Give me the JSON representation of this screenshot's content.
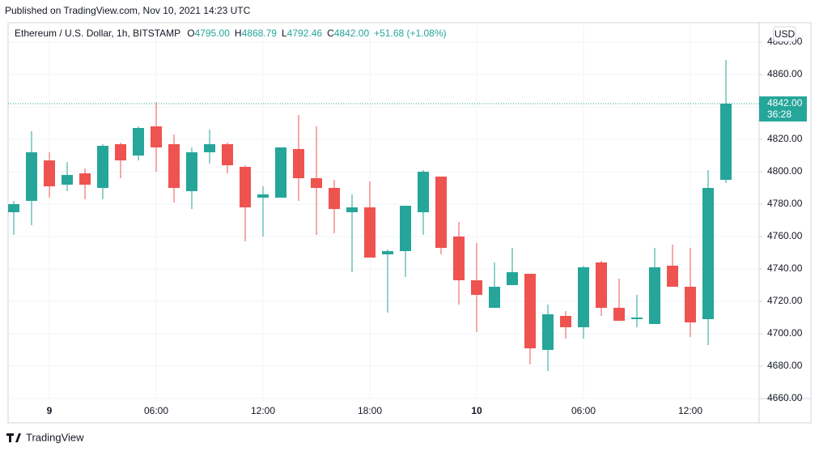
{
  "header": {
    "published": "Published on TradingView.com, Nov 10, 2021 14:23 UTC"
  },
  "footer": {
    "logo": "TradingView"
  },
  "chart_data": {
    "type": "candlestick",
    "legend": {
      "symbol": "Ethereum / U.S. Dollar, 1h, BITSTAMP",
      "o_label": "O",
      "open": "4795.00",
      "h_label": "H",
      "high": "4868.79",
      "l_label": "L",
      "low": "4792.46",
      "c_label": "C",
      "close": "4842.00",
      "change": "+51.68 (+1.08%)"
    },
    "currency": "USD",
    "categories": [
      null,
      null,
      "9",
      null,
      null,
      null,
      null,
      null,
      "06:00",
      null,
      null,
      null,
      null,
      null,
      "12:00",
      null,
      null,
      null,
      null,
      null,
      "18:00",
      null,
      null,
      null,
      null,
      null,
      "10",
      null,
      null,
      null,
      null,
      null,
      "06:00",
      null,
      null,
      null,
      null,
      null,
      "12:00",
      null,
      null
    ],
    "bold_categories": [
      "9",
      "10"
    ],
    "open": [
      4775,
      4782,
      4807,
      4792,
      4799,
      4790,
      4817,
      4810,
      4828,
      4817,
      4788,
      4812,
      4817,
      4803,
      4784,
      4784,
      4814,
      4796,
      4790,
      4775,
      4778,
      4749,
      4751,
      4775,
      4797,
      4760,
      4733,
      4716,
      4730,
      4737,
      4690,
      4711,
      4704,
      4744,
      4716,
      4709,
      4706,
      4742,
      4729,
      4709,
      4795
    ],
    "high": [
      4782,
      4825,
      4812,
      4806,
      4802,
      4817,
      4818,
      4828,
      4843,
      4823,
      4815,
      4826,
      4818,
      4804,
      4791,
      4815,
      4835,
      4828,
      4795,
      4786,
      4794,
      4752,
      4779,
      4801,
      4797,
      4769,
      4756,
      4744,
      4753,
      4737,
      4718,
      4714,
      4742,
      4745,
      4734,
      4724,
      4753,
      4755,
      4753,
      4801,
      4869
    ],
    "low": [
      4761,
      4767,
      4784,
      4788,
      4783,
      4783,
      4796,
      4807,
      4800,
      4781,
      4777,
      4805,
      4799,
      4757,
      4760,
      4784,
      4782,
      4761,
      4762,
      4738,
      4747,
      4713,
      4735,
      4761,
      4749,
      4718,
      4701,
      4716,
      4730,
      4681,
      4677,
      4697,
      4697,
      4711,
      4708,
      4704,
      4706,
      4729,
      4698,
      4693,
      4793
    ],
    "close": [
      4780,
      4812,
      4791,
      4798,
      4792,
      4816,
      4807,
      4827,
      4815,
      4790,
      4812,
      4817,
      4804,
      4778,
      4786,
      4815,
      4796,
      4790,
      4777,
      4778,
      4747,
      4751,
      4779,
      4800,
      4753,
      4733,
      4724,
      4729,
      4738,
      4691,
      4712,
      4704,
      4741,
      4716,
      4708,
      4710,
      4741,
      4729,
      4707,
      4790,
      4842
    ],
    "up_color": "#26a69a",
    "down_color": "#ef5350",
    "last_price": {
      "value": 4842,
      "label": "4842.00"
    },
    "countdown": "36:28",
    "ylim": [
      4660,
      4891
    ],
    "yticks": [
      {
        "value": 4660,
        "label": "4660.00"
      },
      {
        "value": 4680,
        "label": "4680.00"
      },
      {
        "value": 4700,
        "label": "4700.00"
      },
      {
        "value": 4720,
        "label": "4720.00"
      },
      {
        "value": 4740,
        "label": "4740.00"
      },
      {
        "value": 4760,
        "label": "4760.00"
      },
      {
        "value": 4780,
        "label": "4780.00"
      },
      {
        "value": 4800,
        "label": "4800.00"
      },
      {
        "value": 4820,
        "label": "4820.00"
      },
      {
        "value": 4840,
        "label": "4840.00"
      },
      {
        "value": 4860,
        "label": "4860.00"
      },
      {
        "value": 4880,
        "label": "4880.00"
      }
    ],
    "grid": true
  }
}
